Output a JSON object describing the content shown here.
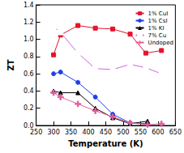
{
  "chart_data": {
    "type": "line",
    "x_label": "Temperature (K)",
    "y_label": "ZT",
    "xlim": [
      250,
      650
    ],
    "xticks": [
      250,
      300,
      350,
      400,
      450,
      500,
      550,
      600,
      650
    ],
    "ylim": [
      0,
      1.4
    ],
    "yticks": [
      {
        "value": 0,
        "label": "0.0"
      },
      0.2,
      0.4,
      0.6,
      0.8,
      {
        "value": 1,
        "label": "1.0"
      },
      1.2,
      1.4
    ],
    "grid": false,
    "legend": "top-right",
    "series": [
      {
        "name": "1% CuI",
        "color": "#e3142c",
        "marker": "square",
        "line_style": "solid",
        "x": [
          300,
          320,
          370,
          420,
          470,
          520,
          565,
          610
        ],
        "values": [
          0.82,
          1.05,
          1.16,
          1.13,
          1.12,
          1.06,
          0.84,
          0.87
        ]
      },
      {
        "name": "1% CsI",
        "color": "#1f3fe8",
        "marker": "circle",
        "line_style": "solid",
        "x": [
          300,
          320,
          370,
          420,
          470,
          520,
          570
        ],
        "values": [
          0.6,
          0.62,
          0.5,
          0.33,
          0.13,
          0.03,
          0.02
        ]
      },
      {
        "name": "1% KI",
        "color": "#000000",
        "marker": "triangle",
        "line_style": "solid",
        "x": [
          300,
          320,
          370,
          420,
          470,
          520,
          570
        ],
        "values": [
          0.4,
          0.38,
          0.38,
          0.2,
          0.09,
          0.02,
          0.05
        ]
      },
      {
        "name": "7% Cu",
        "color": "#cc66dd",
        "marker": "open_square",
        "line_style": "solid",
        "x": [
          300,
          320,
          370,
          420,
          470,
          520,
          565,
          610
        ],
        "values": [
          1.15,
          1.08,
          0.84,
          0.66,
          0.65,
          0.71,
          0.67,
          0.6
        ]
      },
      {
        "name": "Undoped",
        "color": "#e0609c",
        "marker": "plus",
        "line_style": "solid",
        "x": [
          300,
          320,
          370,
          420,
          470,
          520,
          570,
          610
        ],
        "values": [
          0.38,
          0.33,
          0.25,
          0.17,
          0.1,
          0.03,
          0.01,
          0.02
        ]
      }
    ]
  }
}
